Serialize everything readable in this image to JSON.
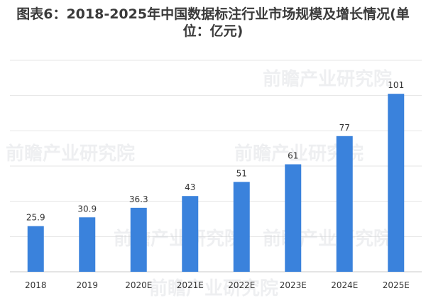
{
  "chart_data": {
    "type": "bar",
    "title": "图表6：2018-2025年中国数据标注行业市场规模及增长情况(单位：亿元)",
    "categories": [
      "2018",
      "2019",
      "2020E",
      "2021E",
      "2022E",
      "2023E",
      "2024E",
      "2025E"
    ],
    "values": [
      25.9,
      30.9,
      36.3,
      43,
      51,
      61,
      77,
      101
    ],
    "value_labels": [
      "25.9",
      "30.9",
      "36.3",
      "43",
      "51",
      "61",
      "77",
      "101"
    ],
    "ylim": [
      0,
      120
    ],
    "grid": true,
    "legend": "none",
    "bar_color": "#3a82dc",
    "watermark": "前瞻产业研究院"
  }
}
